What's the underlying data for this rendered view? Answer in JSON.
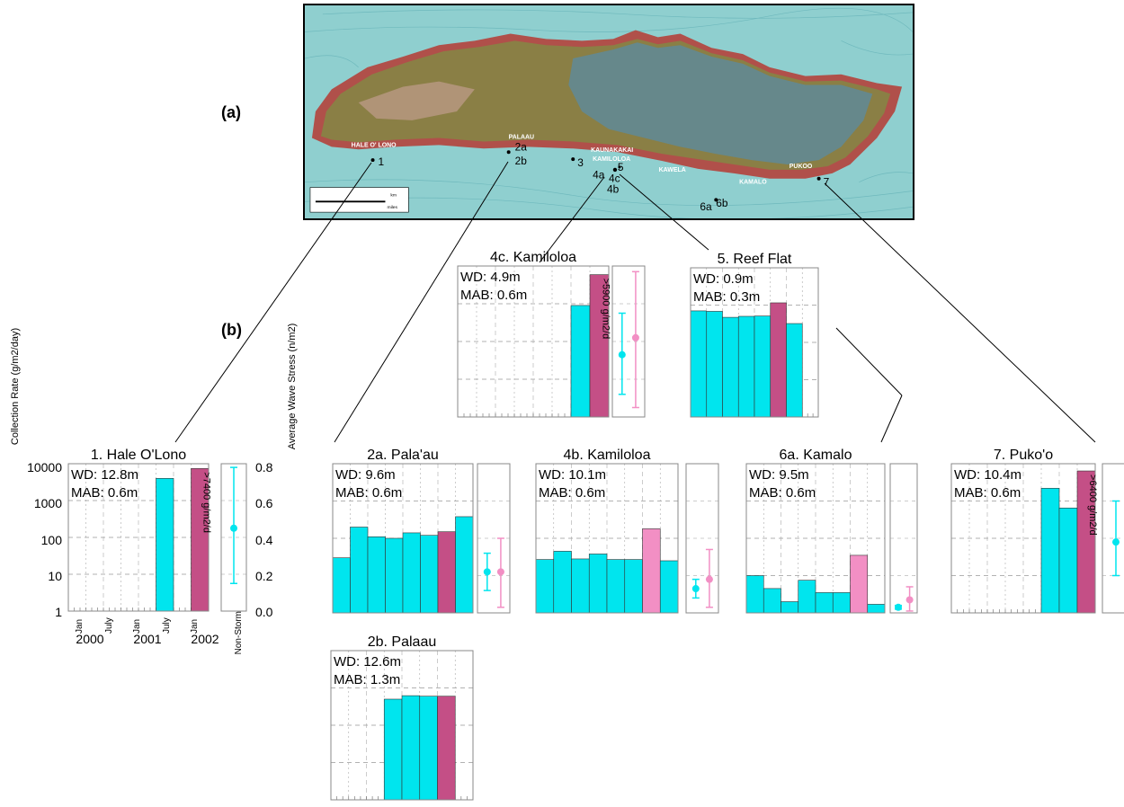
{
  "panel_labels": {
    "a": "(a)",
    "b": "(b)"
  },
  "map": {
    "place_names": [
      "HALE O' LONO",
      "PALAAU",
      "KAUNAKAKAI",
      "KAMILOLOA",
      "KAWELA",
      "KAMALO",
      "PUKOO"
    ],
    "site_labels": [
      "1",
      "2a",
      "2b",
      "3",
      "4a",
      "4c",
      "4b",
      "5",
      "6a",
      "6b",
      "7"
    ],
    "scale_unit_km": "km",
    "scale_unit_miles": "miles"
  },
  "colors": {
    "non_storm": "#00e5ee",
    "storm": "#c44f86",
    "storm_light": "#f28fc4",
    "ocean": "#8fcfcf",
    "land": "#8a7f45",
    "coast": "#b0504a"
  },
  "axes": {
    "ylabel_left": "Collection Rate (g/m2/day)",
    "ylabel_right": "Average Wave Stress (n/m2)",
    "left_ticks": [
      "10000",
      "1000",
      "100",
      "10",
      "1"
    ],
    "right_ticks": [
      "0.8",
      "0.6",
      "0.4",
      "0.2",
      "0.0"
    ],
    "x_ticks": [
      "Jan",
      "July",
      "Jan",
      "July",
      "Jan"
    ],
    "x_years": [
      "2000",
      "2001",
      "2002"
    ],
    "side_label": "Non-Storm"
  },
  "chart_data": [
    {
      "id": "1",
      "type": "bar",
      "title": "1. Hale O'Lono",
      "wd": "WD: 12.8m",
      "mab": "MAB: 0.6m",
      "yscale": "log",
      "ylim": [
        1,
        10000
      ],
      "bars": [
        {
          "x": [
            5,
            6
          ],
          "value": 4000,
          "storm": false
        },
        {
          "x": [
            7,
            8
          ],
          "value": 7400,
          "storm": true
        }
      ],
      "annotation": ">7400 g/m2/d",
      "wave_stress": [
        {
          "storm": false,
          "value": 0.45,
          "low": 0.15,
          "high": 0.78
        }
      ]
    },
    {
      "id": "4c",
      "type": "bar",
      "title": "4c. Kamiloloa",
      "wd": "WD: 4.9m",
      "mab": "MAB: 0.6m",
      "yscale": "log",
      "ylim": [
        1,
        10000
      ],
      "bars": [
        {
          "x": [
            6,
            7
          ],
          "value": 900,
          "storm": false
        },
        {
          "x": [
            7,
            8
          ],
          "value": 5900,
          "storm": true
        }
      ],
      "annotation": ">5900 g/m2/d",
      "wave_stress": [
        {
          "storm": false,
          "value": 0.33,
          "low": 0.12,
          "high": 0.55
        },
        {
          "storm": true,
          "value": 0.42,
          "low": 0.05,
          "high": 0.77
        }
      ]
    },
    {
      "id": "5",
      "type": "bar",
      "title": "5. Reef Flat",
      "wd": "WD: 0.9m",
      "mab": "MAB: 0.3m",
      "yscale": "log",
      "ylim": [
        1,
        10000
      ],
      "bars": [
        {
          "x": [
            0,
            1
          ],
          "value": 700,
          "storm": false
        },
        {
          "x": [
            1,
            2
          ],
          "value": 680,
          "storm": false
        },
        {
          "x": [
            2,
            3
          ],
          "value": 470,
          "storm": false
        },
        {
          "x": [
            3,
            4
          ],
          "value": 500,
          "storm": false
        },
        {
          "x": [
            4,
            5
          ],
          "value": 510,
          "storm": false
        },
        {
          "x": [
            5,
            6
          ],
          "value": 1150,
          "storm": true
        },
        {
          "x": [
            6,
            7
          ],
          "value": 320,
          "storm": false
        }
      ],
      "wave_stress": []
    },
    {
      "id": "2a",
      "type": "bar",
      "title": "2a. Pala'au",
      "wd": "WD: 9.6m",
      "mab": "MAB: 0.6m",
      "yscale": "log",
      "ylim": [
        1,
        10000
      ],
      "bars": [
        {
          "x": [
            0,
            1
          ],
          "value": 30,
          "storm": false
        },
        {
          "x": [
            1,
            2
          ],
          "value": 200,
          "storm": false
        },
        {
          "x": [
            2,
            3
          ],
          "value": 110,
          "storm": false
        },
        {
          "x": [
            3,
            4
          ],
          "value": 100,
          "storm": false
        },
        {
          "x": [
            4,
            5
          ],
          "value": 140,
          "storm": false
        },
        {
          "x": [
            5,
            6
          ],
          "value": 120,
          "storm": false
        },
        {
          "x": [
            6,
            7
          ],
          "value": 150,
          "storm": true
        },
        {
          "x": [
            7,
            8
          ],
          "value": 380,
          "storm": false
        }
      ],
      "wave_stress": [
        {
          "storm": false,
          "value": 0.22,
          "low": 0.12,
          "high": 0.32
        },
        {
          "storm": true,
          "value": 0.22,
          "low": 0.03,
          "high": 0.4
        }
      ]
    },
    {
      "id": "4b",
      "type": "bar",
      "title": "4b. Kamiloloa",
      "wd": "WD: 10.1m",
      "mab": "MAB: 0.6m",
      "yscale": "log",
      "ylim": [
        1,
        10000
      ],
      "bars": [
        {
          "x": [
            0,
            1
          ],
          "value": 27,
          "storm": false
        },
        {
          "x": [
            1,
            2
          ],
          "value": 45,
          "storm": false
        },
        {
          "x": [
            2,
            3
          ],
          "value": 28,
          "storm": false
        },
        {
          "x": [
            3,
            4
          ],
          "value": 38,
          "storm": false
        },
        {
          "x": [
            4,
            5
          ],
          "value": 27,
          "storm": false
        },
        {
          "x": [
            5,
            6
          ],
          "value": 27,
          "storm": false
        },
        {
          "x": [
            6,
            7
          ],
          "value": 180,
          "storm": true,
          "light": true
        },
        {
          "x": [
            7,
            8
          ],
          "value": 25,
          "storm": false
        }
      ],
      "wave_stress": [
        {
          "storm": false,
          "value": 0.13,
          "low": 0.08,
          "high": 0.18
        },
        {
          "storm": true,
          "value": 0.18,
          "low": 0.03,
          "high": 0.34
        }
      ]
    },
    {
      "id": "6a",
      "type": "bar",
      "title": "6a. Kamalo",
      "wd": "WD: 9.5m",
      "mab": "MAB: 0.6m",
      "yscale": "log",
      "ylim": [
        1,
        10000
      ],
      "bars": [
        {
          "x": [
            0,
            1
          ],
          "value": 10,
          "storm": false
        },
        {
          "x": [
            1,
            2
          ],
          "value": 4.5,
          "storm": false
        },
        {
          "x": [
            2,
            3
          ],
          "value": 2,
          "storm": false
        },
        {
          "x": [
            3,
            4
          ],
          "value": 7.5,
          "storm": false
        },
        {
          "x": [
            4,
            5
          ],
          "value": 3.5,
          "storm": false
        },
        {
          "x": [
            5,
            6
          ],
          "value": 3.5,
          "storm": false
        },
        {
          "x": [
            6,
            7
          ],
          "value": 35,
          "storm": true,
          "light": true
        },
        {
          "x": [
            7,
            8
          ],
          "value": 1.7,
          "storm": false
        }
      ],
      "wave_stress": [
        {
          "storm": false,
          "value": 0.03,
          "low": 0.02,
          "high": 0.04
        },
        {
          "storm": true,
          "value": 0.07,
          "low": 0.01,
          "high": 0.14
        }
      ]
    },
    {
      "id": "7",
      "type": "bar",
      "title": "7. Puko'o",
      "wd": "WD: 10.4m",
      "mab": "MAB: 0.6m",
      "yscale": "log",
      "ylim": [
        1,
        10000
      ],
      "bars": [
        {
          "x": [
            5,
            6
          ],
          "value": 2200,
          "storm": false
        },
        {
          "x": [
            6,
            7
          ],
          "value": 650,
          "storm": false
        },
        {
          "x": [
            7,
            8
          ],
          "value": 6400,
          "storm": true
        }
      ],
      "annotation": ">6400 g/m2/d",
      "wave_stress": [
        {
          "storm": false,
          "value": 0.38,
          "low": 0.2,
          "high": 0.6
        }
      ]
    },
    {
      "id": "2b",
      "type": "bar",
      "title": "2b. Palaau",
      "wd": "WD: 12.6m",
      "mab": "MAB: 1.3m",
      "yscale": "log",
      "ylim": [
        1,
        10000
      ],
      "bars": [
        {
          "x": [
            3,
            4
          ],
          "value": 500,
          "storm": false
        },
        {
          "x": [
            4,
            5
          ],
          "value": 620,
          "storm": false
        },
        {
          "x": [
            5,
            6
          ],
          "value": 600,
          "storm": false
        },
        {
          "x": [
            6,
            7
          ],
          "value": 600,
          "storm": true
        }
      ],
      "wave_stress": []
    }
  ]
}
